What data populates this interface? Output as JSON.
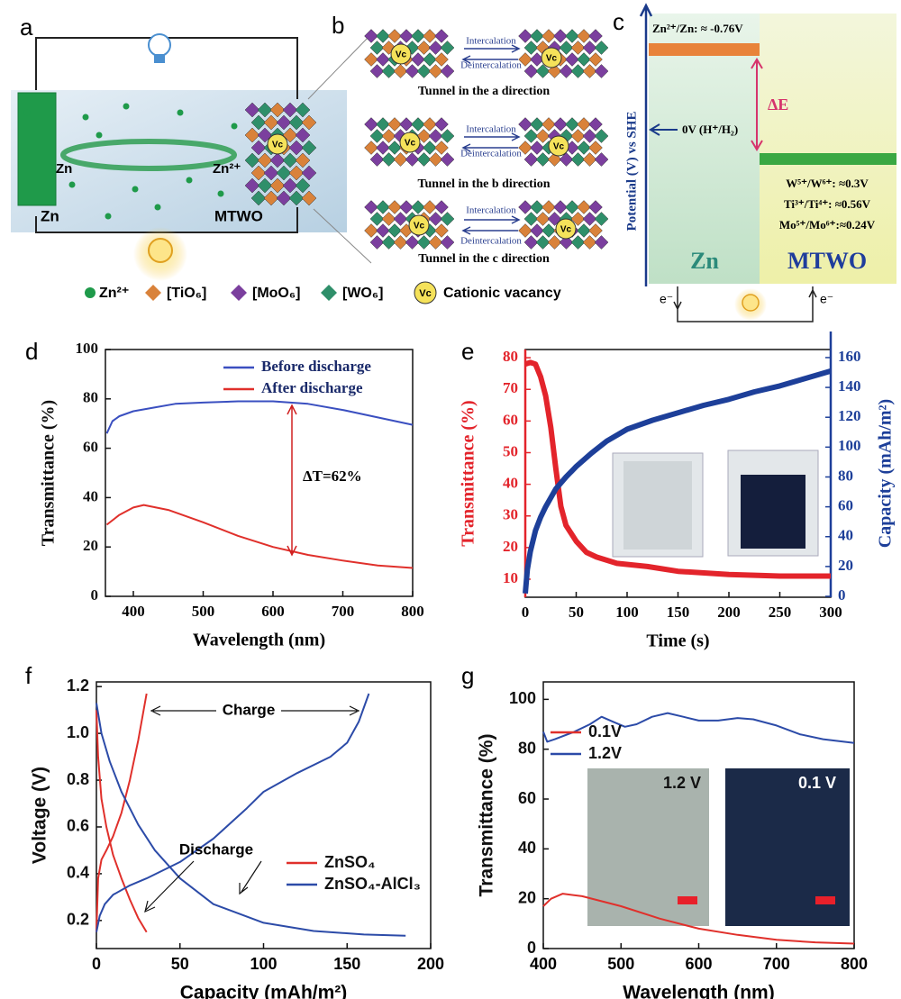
{
  "panels": {
    "a": {
      "label": "a",
      "zn_left": "Zn",
      "zn_mid": "Zn",
      "zn_ion": "Zn²⁺",
      "mtwo": "MTWO",
      "vc": "Vc",
      "legend": [
        "Zn²⁺",
        "[TiO₆]",
        "[MoO₆]",
        "[WO₆]",
        "Vc",
        "Cationic vacancy"
      ]
    },
    "b": {
      "label": "b",
      "vc": "Vc",
      "rows": [
        {
          "forward": "Intercalation",
          "backward": "Deintercalation",
          "caption": "Tunnel in the a direction"
        },
        {
          "forward": "Intercalation",
          "backward": "Deintercalation",
          "caption": "Tunnel in the b direction"
        },
        {
          "forward": "Intercalation",
          "backward": "Deintercalation",
          "caption": "Tunnel in the c direction"
        }
      ]
    },
    "c": {
      "label": "c",
      "zn_level": "Zn²⁺/Zn: ≈ -0.76V",
      "delta": "ΔE",
      "she": "0V (H⁺/H₂)",
      "levels": [
        "W⁵⁺/W⁶⁺: ≈0.3V",
        "Ti³⁺/Ti⁴⁺: ≈0.56V",
        "Mo⁵⁺/Mo⁶⁺:≈0.24V"
      ],
      "axis_label": "Potential (V) vs SHE",
      "left": "Zn",
      "right": "MTWO",
      "electron": "e⁻"
    }
  },
  "chart_data": [
    {
      "label": "d",
      "type": "line",
      "xlabel": "Wavelength (nm)",
      "ylabel": "Transmittance (%)",
      "xlim": [
        360,
        800
      ],
      "xticks": [
        400,
        500,
        600,
        700,
        800
      ],
      "ylim": [
        0,
        100
      ],
      "yticks": [
        0,
        20,
        40,
        60,
        80,
        100
      ],
      "legend": "upper right",
      "annotation": "ΔT=62%",
      "series": [
        {
          "name": "Before discharge",
          "color": "#3a4fc0",
          "x": [
            362,
            370,
            380,
            400,
            430,
            460,
            500,
            550,
            600,
            650,
            700,
            750,
            800
          ],
          "values": [
            66,
            71,
            73,
            75,
            76.5,
            78,
            78.5,
            79,
            79,
            78,
            75.5,
            72.5,
            69.5
          ]
        },
        {
          "name": "After discharge",
          "color": "#e0302b",
          "x": [
            362,
            380,
            400,
            415,
            450,
            500,
            550,
            600,
            650,
            700,
            750,
            800
          ],
          "values": [
            29,
            33,
            36,
            37,
            35,
            30,
            24.5,
            20,
            16.8,
            14.5,
            12.5,
            11.5
          ]
        }
      ]
    },
    {
      "label": "e",
      "type": "line",
      "xlabel": "Time (s)",
      "ylabel": "Transmittance (%)",
      "y2label": "Capacity (mAh/m²)",
      "xlim": [
        0,
        300
      ],
      "xticks": [
        0,
        50,
        100,
        150,
        200,
        250,
        300
      ],
      "ylim": [
        4.3,
        82.6
      ],
      "yticks": [
        10,
        20,
        30,
        40,
        50,
        60,
        70,
        80
      ],
      "y2lim": [
        -0.6,
        165.4
      ],
      "y2ticks": [
        0,
        20,
        40,
        60,
        80,
        100,
        120,
        140,
        160
      ],
      "series": [
        {
          "color": "#e3242b",
          "x": [
            0,
            5,
            10,
            15,
            20,
            25,
            30,
            35,
            40,
            50,
            60,
            70,
            90,
            120,
            150,
            200,
            250,
            300
          ],
          "values": [
            78,
            78.5,
            78,
            74,
            68,
            58,
            45,
            33,
            27,
            22,
            18.5,
            17,
            15,
            14,
            12.5,
            11.5,
            11,
            11
          ]
        },
        {
          "color": "#1d3f99",
          "axis": "y2",
          "x": [
            0,
            2,
            5,
            10,
            15,
            20,
            30,
            40,
            50,
            65,
            80,
            100,
            125,
            150,
            175,
            200,
            225,
            250,
            275,
            300
          ],
          "values": [
            2,
            18,
            30,
            44,
            53,
            60,
            72,
            80,
            87,
            96,
            104,
            112,
            118,
            123,
            128,
            132,
            137,
            141,
            146,
            151
          ]
        }
      ]
    },
    {
      "label": "f",
      "type": "line",
      "xlabel": "Capacity (mAh/m²)",
      "ylabel": "Voltage (V)",
      "xlim": [
        0,
        200
      ],
      "xticks": [
        0,
        50,
        100,
        150,
        200
      ],
      "ylim": [
        0.08,
        1.22
      ],
      "yticks": [
        0.2,
        0.4,
        0.6,
        0.8,
        {
          "value": 1,
          "label": "1.0"
        },
        1.2
      ],
      "legend": "lower right",
      "annotations": [
        "Charge",
        "Discharge"
      ],
      "series": [
        {
          "name": "ZnSO₄",
          "color": "#e0302b",
          "curves": [
            {
              "x": [
                0,
                1,
                3,
                6,
                10,
                15,
                20,
                25,
                30
              ],
              "values": [
                0.15,
                0.38,
                0.46,
                0.5,
                0.56,
                0.66,
                0.8,
                0.97,
                1.17
              ]
            },
            {
              "x": [
                0,
                1,
                3,
                6,
                10,
                15,
                20,
                25,
                30
              ],
              "values": [
                1.1,
                0.9,
                0.72,
                0.6,
                0.48,
                0.38,
                0.29,
                0.21,
                0.15
              ]
            }
          ]
        },
        {
          "name": "ZnSO₄-AlCl₃",
          "color": "#2c4ba8",
          "curves": [
            {
              "x": [
                0,
                2,
                5,
                10,
                20,
                30,
                50,
                70,
                90,
                100,
                120,
                140,
                150,
                157,
                163
              ],
              "values": [
                0.15,
                0.22,
                0.27,
                0.31,
                0.35,
                0.38,
                0.45,
                0.55,
                0.68,
                0.75,
                0.83,
                0.9,
                0.96,
                1.05,
                1.17
              ]
            },
            {
              "x": [
                0,
                3,
                8,
                15,
                25,
                35,
                50,
                70,
                100,
                130,
                160,
                185
              ],
              "values": [
                1.13,
                1.0,
                0.88,
                0.75,
                0.61,
                0.5,
                0.38,
                0.27,
                0.19,
                0.155,
                0.14,
                0.135
              ]
            }
          ]
        }
      ]
    },
    {
      "label": "g",
      "type": "line",
      "xlabel": "Wavelength (nm)",
      "ylabel": "Transmittance (%)",
      "xlim": [
        400,
        800
      ],
      "xticks": [
        400,
        500,
        600,
        700,
        800
      ],
      "ylim": [
        0,
        107
      ],
      "yticks": [
        0,
        20,
        40,
        60,
        80,
        100
      ],
      "legend": "upper left",
      "inset_labels": [
        "1.2 V",
        "0.1 V"
      ],
      "series": [
        {
          "name": "0.1V",
          "color": "#e0302b",
          "x": [
            400,
            410,
            425,
            450,
            500,
            550,
            600,
            650,
            700,
            750,
            800
          ],
          "values": [
            17,
            20,
            22,
            21,
            17,
            12,
            8,
            5.5,
            3.5,
            2.5,
            2
          ]
        },
        {
          "name": "1.2V",
          "color": "#2c4ba8",
          "x": [
            400,
            405,
            415,
            440,
            460,
            475,
            490,
            505,
            520,
            540,
            560,
            580,
            600,
            625,
            650,
            670,
            700,
            730,
            760,
            800
          ],
          "values": [
            87,
            83,
            84,
            87,
            90,
            93,
            91,
            89,
            90,
            93,
            94.5,
            93,
            91.5,
            91.5,
            92.5,
            92,
            89.5,
            86,
            84,
            82.5
          ]
        }
      ]
    }
  ]
}
